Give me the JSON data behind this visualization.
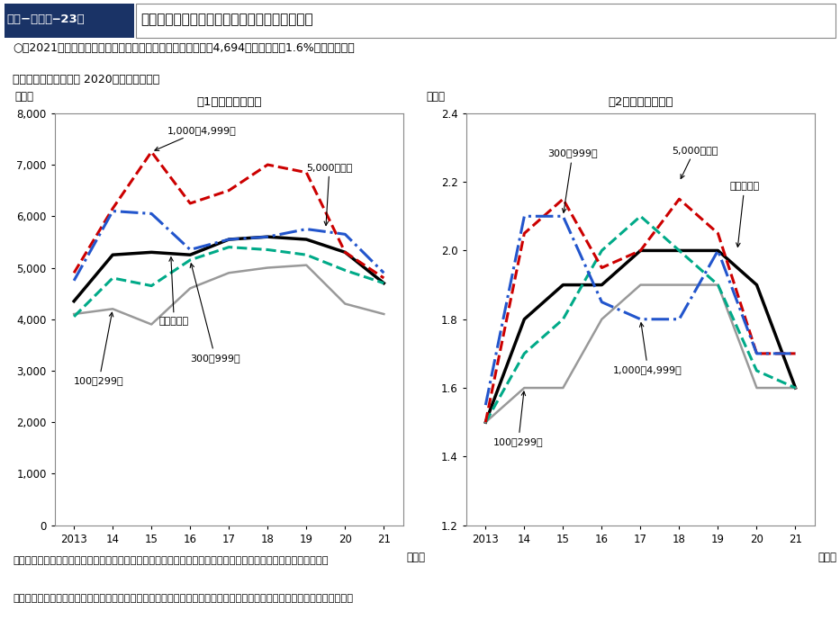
{
  "years": [
    2013,
    2014,
    2015,
    2016,
    2017,
    2018,
    2019,
    2020,
    2021
  ],
  "chart1_title": "（1）賃金の改定額",
  "chart2_title": "（2）賃金の改定率",
  "chart1_ylabel": "（円）",
  "chart2_ylabel": "（％）",
  "chart1_xlabel": "（年）",
  "chart2_xlabel": "（年）",
  "chart1_ylim": [
    0,
    8000
  ],
  "chart1_yticks": [
    0,
    1000,
    2000,
    3000,
    4000,
    5000,
    6000,
    7000,
    8000
  ],
  "chart2_ylim": [
    1.2,
    2.4
  ],
  "chart2_yticks": [
    1.2,
    1.4,
    1.6,
    1.8,
    2.0,
    2.2,
    2.4
  ],
  "header_label": "第１−（３）‒23図",
  "header_title": "一人当たり平均賃金の改定額及び改定率の推移",
  "subtitle1": "○　2021年の一人当たり平均賃金の改定額（予定を含む）は4,694円、改定率は1.6%となり、改定",
  "subtitle2": "　　額、改定率ともに 2020年を下回った。",
  "footnote1": "資料出所　厚生労働省「賃金引上げ等の実態に関する調査」をもとに厚生労働省政策統括官付政策統括室にて作成",
  "footnote2": "（注）　賃金の改定を実施し又は予定していて額も決定している企業及び賃金の改定を実施しない企業を対象に集計した。",
  "ann1_chart1_label": "1,000＄4,999人",
  "ann2_chart1_label": "5,000人以上",
  "ann3_chart1_label": "100＇299人",
  "ann4_chart1_label": "企業規模計",
  "ann5_chart1_label": "300＇999人",
  "ann1_chart2_label": "300＇999人",
  "ann2_chart2_label": "5,000人以上",
  "ann3_chart2_label": "企業規模計",
  "ann4_chart2_label": "100＇299人",
  "ann5_chart2_label": "1,000＄4,999人",
  "series": {
    "kigyokei": {
      "label": "企業規模計",
      "color": "#000000",
      "linestyle": "solid",
      "linewidth": 2.5,
      "chart1_data": [
        4350,
        5250,
        5300,
        5250,
        5550,
        5600,
        5550,
        5300,
        4700
      ],
      "chart2_data": [
        1.5,
        1.8,
        1.9,
        1.9,
        2.0,
        2.0,
        2.0,
        1.9,
        1.6
      ]
    },
    "s100_299": {
      "label": "100＇299人",
      "color": "#999999",
      "linestyle": "solid",
      "linewidth": 1.8,
      "chart1_data": [
        4100,
        4200,
        3900,
        4600,
        4900,
        5000,
        5050,
        4300,
        4100
      ],
      "chart2_data": [
        1.5,
        1.6,
        1.6,
        1.8,
        1.9,
        1.9,
        1.9,
        1.6,
        1.6
      ]
    },
    "s300_999": {
      "label": "300＇999人",
      "color": "#00aa88",
      "linestyle": "dashed",
      "linewidth": 2.2,
      "chart1_data": [
        4050,
        4800,
        4650,
        5150,
        5400,
        5350,
        5250,
        4950,
        4700
      ],
      "chart2_data": [
        1.5,
        1.7,
        1.8,
        2.0,
        2.1,
        2.0,
        1.9,
        1.65,
        1.6
      ]
    },
    "s1000_4999": {
      "label": "1,000＄4,999人",
      "color": "#cc0000",
      "linestyle": "dashed",
      "linewidth": 2.2,
      "chart1_data": [
        4900,
        6150,
        7250,
        6250,
        6500,
        7000,
        6850,
        5300,
        4800
      ],
      "chart2_data": [
        1.5,
        2.05,
        2.15,
        1.95,
        2.0,
        2.15,
        2.05,
        1.7,
        1.7
      ]
    },
    "s5000plus": {
      "label": "5,000人以上",
      "color": "#2255cc",
      "linestyle": "dashdot",
      "linewidth": 2.2,
      "chart1_data": [
        4750,
        6100,
        6050,
        5350,
        5550,
        5600,
        5750,
        5650,
        4900
      ],
      "chart2_data": [
        1.55,
        2.1,
        2.1,
        1.85,
        1.8,
        1.8,
        2.0,
        1.7,
        1.7
      ]
    }
  },
  "background_color": "#ffffff"
}
